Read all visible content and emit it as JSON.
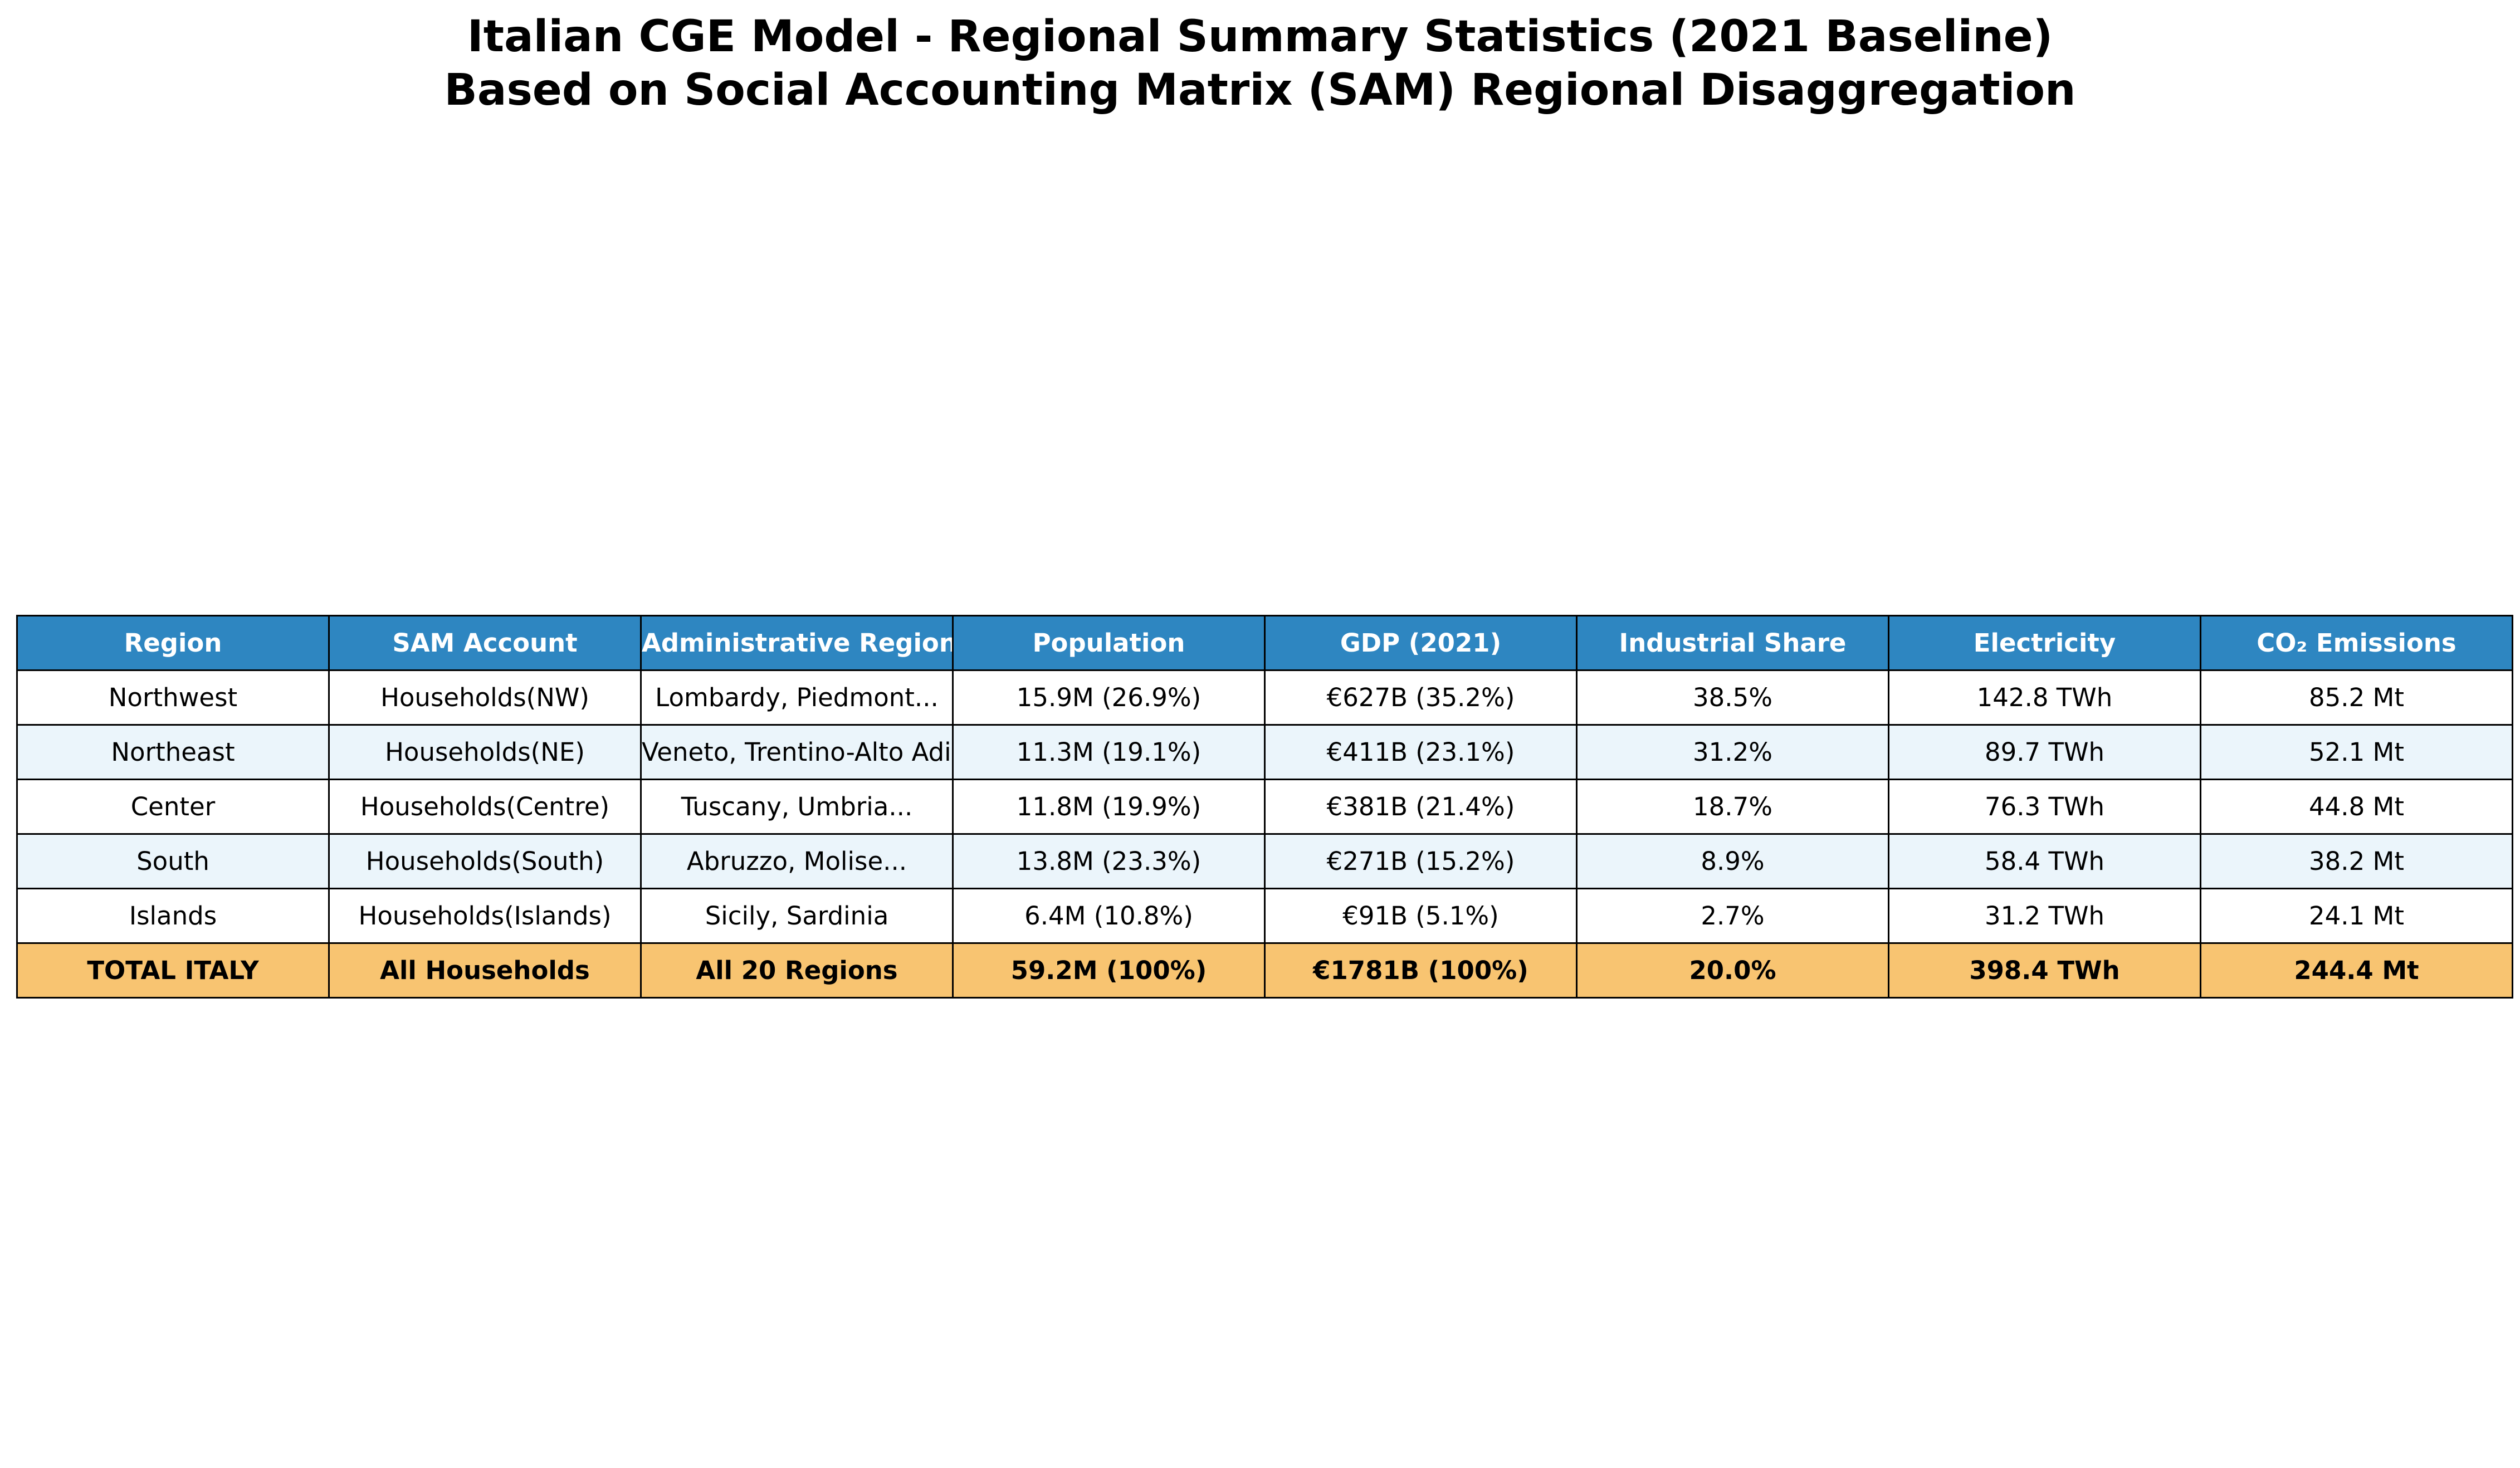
{
  "chart_data": {
    "type": "table",
    "title": "Italian CGE Model - Regional Summary Statistics (2021 Baseline)",
    "subtitle": "Based on Social Accounting Matrix (SAM) Regional Disaggregation",
    "columns": [
      "Region",
      "SAM Account",
      "Administrative Region",
      "Population",
      "GDP (2021)",
      "Industrial Share",
      "Electricity",
      "CO₂ Emissions"
    ],
    "rows": [
      [
        "Northwest",
        "Households(NW)",
        "Lombardy, Piedmont...",
        "15.9M (26.9%)",
        "€627B (35.2%)",
        "38.5%",
        "142.8 TWh",
        "85.2 Mt"
      ],
      [
        "Northeast",
        "Households(NE)",
        "Veneto, Trentino-Alto Adige",
        "11.3M (19.1%)",
        "€411B (23.1%)",
        "31.2%",
        "89.7 TWh",
        "52.1 Mt"
      ],
      [
        "Center",
        "Households(Centre)",
        "Tuscany, Umbria...",
        "11.8M (19.9%)",
        "€381B (21.4%)",
        "18.7%",
        "76.3 TWh",
        "44.8 Mt"
      ],
      [
        "South",
        "Households(South)",
        "Abruzzo, Molise...",
        "13.8M (23.3%)",
        "€271B (15.2%)",
        "8.9%",
        "58.4 TWh",
        "38.2 Mt"
      ],
      [
        "Islands",
        "Households(Islands)",
        "Sicily, Sardinia",
        "6.4M (10.8%)",
        "€91B (5.1%)",
        "2.7%",
        "31.2 TWh",
        "24.1 Mt"
      ]
    ],
    "total_row": [
      "TOTAL ITALY",
      "All Households",
      "All 20 Regions",
      "59.2M (100%)",
      "€1781B (100%)",
      "20.0%",
      "398.4 TWh",
      "244.4 Mt"
    ],
    "colors": {
      "header": "#2e86c1",
      "header_text": "#ffffff",
      "row_alt": "#ebf5fb",
      "total": "#f8c471"
    }
  }
}
